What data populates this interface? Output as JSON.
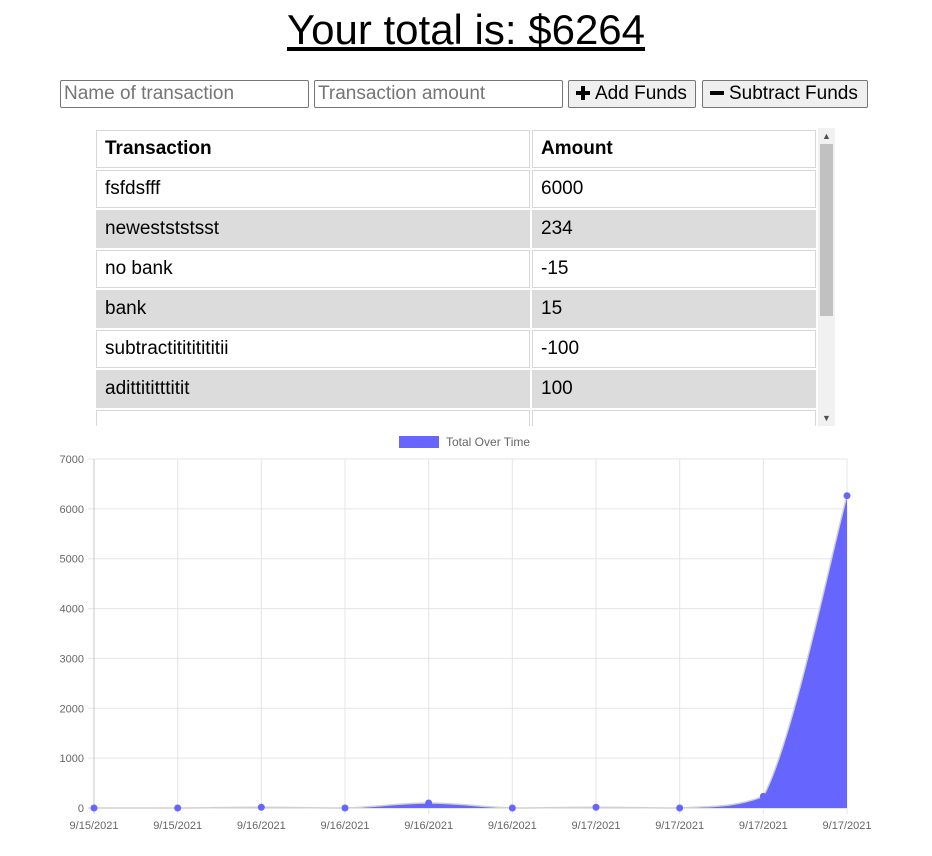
{
  "header": {
    "total_text": "Your total is: $6264"
  },
  "form": {
    "name_placeholder": "Name of transaction",
    "amount_placeholder": "Transaction amount",
    "add_label": "Add Funds",
    "subtract_label": "Subtract Funds"
  },
  "table": {
    "headers": [
      "Transaction",
      "Amount"
    ],
    "rows": [
      [
        "fsfdsfff",
        "6000"
      ],
      [
        "newestststsst",
        "234"
      ],
      [
        "no bank",
        "-15"
      ],
      [
        "bank",
        "15"
      ],
      [
        "subtractitititititii",
        "-100"
      ],
      [
        "adittititttitit",
        "100"
      ],
      [
        "",
        ""
      ]
    ]
  },
  "chart_data": {
    "type": "area",
    "legend": "Total Over Time",
    "legend_position": "top-center",
    "color": "#6666ff",
    "x": [
      "9/15/2021",
      "9/15/2021",
      "9/16/2021",
      "9/16/2021",
      "9/16/2021",
      "9/16/2021",
      "9/17/2021",
      "9/17/2021",
      "9/17/2021",
      "9/17/2021"
    ],
    "values": [
      0,
      0,
      15,
      0,
      100,
      0,
      15,
      0,
      234,
      6264
    ],
    "ylim": [
      0,
      7000
    ],
    "yticks": [
      0,
      1000,
      2000,
      3000,
      4000,
      5000,
      6000,
      7000
    ],
    "grid": true
  }
}
